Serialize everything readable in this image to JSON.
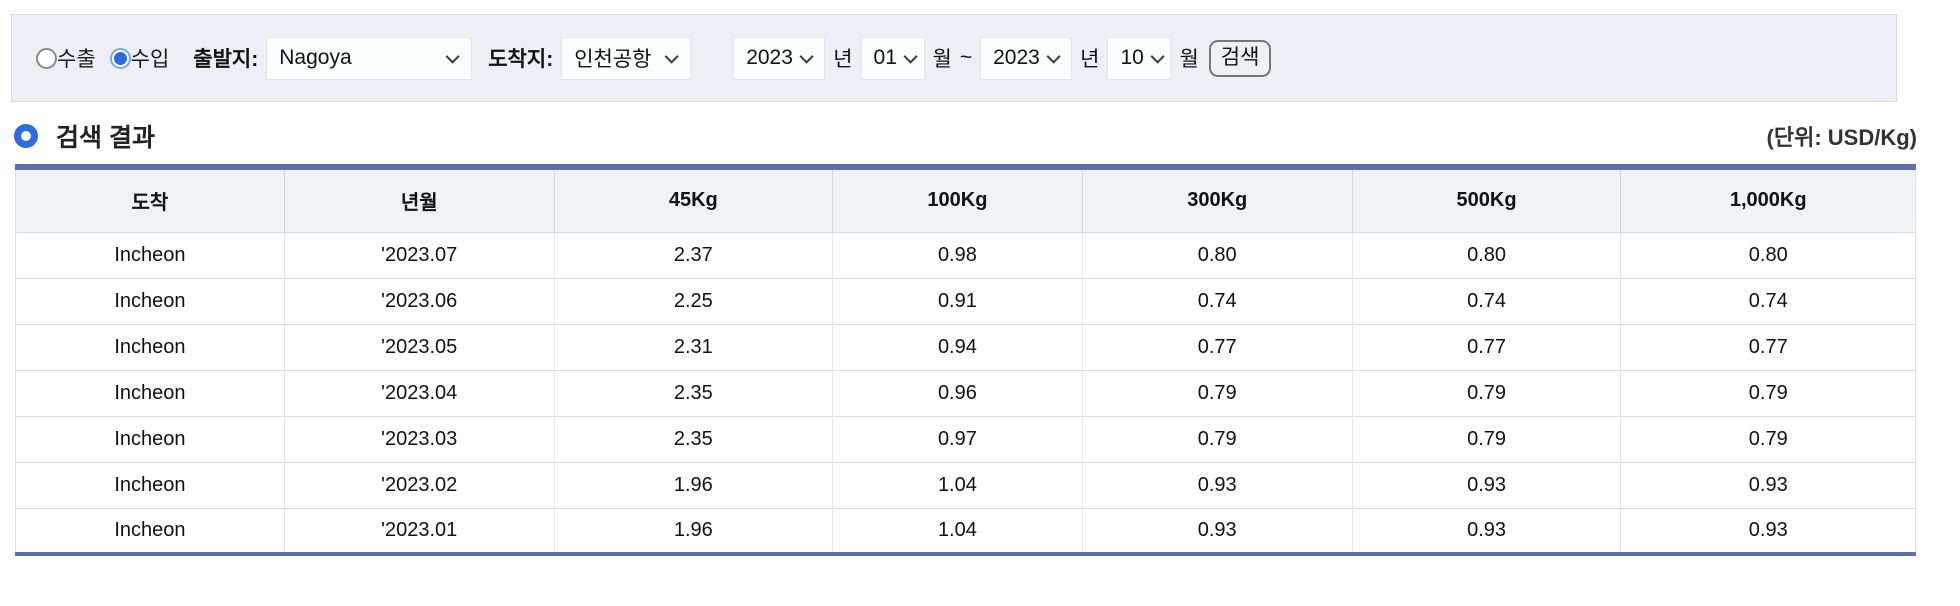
{
  "search_bar": {
    "radio_export": "수출",
    "radio_import": "수입",
    "departure_label": "출발지:",
    "departure_value": "Nagoya",
    "arrival_label": "도착지:",
    "arrival_value": "인천공항",
    "from_year": "2023",
    "from_month": "01",
    "to_year": "2023",
    "to_month": "10",
    "year_suffix": "년",
    "month_suffix": "월",
    "range_separator": "~",
    "search_button": "검색"
  },
  "results": {
    "title": "검색 결과",
    "unit": "(단위: USD/Kg)",
    "table": {
      "columns": [
        "도착",
        "년월",
        "45Kg",
        "100Kg",
        "300Kg",
        "500Kg",
        "1,000Kg"
      ],
      "rows": [
        [
          "Incheon",
          "'2023.07",
          "2.37",
          "0.98",
          "0.80",
          "0.80",
          "0.80"
        ],
        [
          "Incheon",
          "'2023.06",
          "2.25",
          "0.91",
          "0.74",
          "0.74",
          "0.74"
        ],
        [
          "Incheon",
          "'2023.05",
          "2.31",
          "0.94",
          "0.77",
          "0.77",
          "0.77"
        ],
        [
          "Incheon",
          "'2023.04",
          "2.35",
          "0.96",
          "0.79",
          "0.79",
          "0.79"
        ],
        [
          "Incheon",
          "'2023.03",
          "2.35",
          "0.97",
          "0.79",
          "0.79",
          "0.79"
        ],
        [
          "Incheon",
          "'2023.02",
          "1.96",
          "1.04",
          "0.93",
          "0.93",
          "0.93"
        ],
        [
          "Incheon",
          "'2023.01",
          "1.96",
          "1.04",
          "0.93",
          "0.93",
          "0.93"
        ]
      ]
    }
  },
  "colors": {
    "accent_blue": "#2f6ae0",
    "table_border_blue": "#5c6fae",
    "bar_background": "#edeff4"
  }
}
